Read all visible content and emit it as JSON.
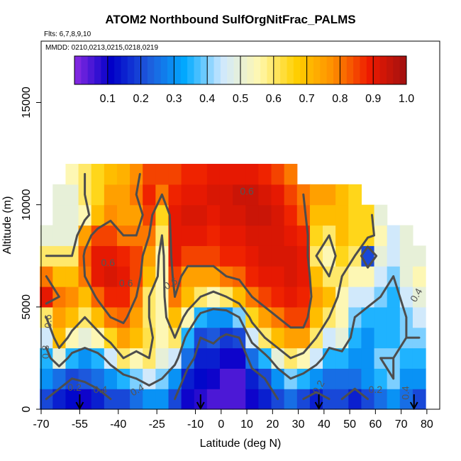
{
  "title": "ATOM2 Northbound SulfOrgNitFrac_PALMS",
  "flights_note": "Flts: 6,7,8,9,10",
  "mmdd_note": "MMDD: 0210,0213,0215,0218,0219",
  "chart_data": {
    "type": "heatmap",
    "title": "ATOM2 Northbound SulfOrgNitFrac_PALMS",
    "xlabel": "Latitude (deg N)",
    "ylabel": "Altitude (m)",
    "xlim": [
      -70,
      85
    ],
    "ylim": [
      0,
      18000
    ],
    "x_ticks": [
      -70,
      -55,
      -40,
      -25,
      -10,
      0,
      10,
      20,
      30,
      40,
      50,
      60,
      70,
      80
    ],
    "x_tick_labels": [
      "-70",
      "-55",
      "-40",
      "-25",
      "-10",
      "0",
      "10",
      "20",
      "30",
      "40",
      "50",
      "60",
      "70",
      "80"
    ],
    "y_ticks": [
      0,
      5000,
      10000,
      15000
    ],
    "y_tick_labels": [
      "0",
      "5000",
      "10000",
      "15000"
    ],
    "colorbar": {
      "range": [
        0,
        1.0
      ],
      "tick_values": [
        0.1,
        0.2,
        0.3,
        0.4,
        0.5,
        0.6,
        0.7,
        0.8,
        0.9,
        1.0
      ],
      "tick_labels": [
        "0.1",
        "0.2",
        "0.3",
        "0.4",
        "0.5",
        "0.6",
        "0.7",
        "0.8",
        "0.9",
        "1.0"
      ],
      "placement": "top-inside",
      "colors": [
        "#8a2be2",
        "#0000c8",
        "#1e5adc",
        "#00aaff",
        "#cfe8ff",
        "#fff8b0",
        "#ffd000",
        "#ff9000",
        "#ee1a00",
        "#a01010"
      ]
    },
    "latitudes": [
      -68,
      -63,
      -58,
      -53,
      -48,
      -43,
      -38,
      -33,
      -28,
      -23,
      -18,
      -13,
      -8,
      -3,
      2,
      7,
      12,
      17,
      22,
      27,
      32,
      37,
      42,
      47,
      52,
      57,
      62,
      67,
      72,
      77
    ],
    "altitudes": [
      500,
      1500,
      2500,
      3500,
      4500,
      5500,
      6500,
      7500,
      8500,
      9500,
      10500,
      11500
    ],
    "values": [
      [
        0.2,
        0.3,
        0.35,
        0.45,
        0.6,
        0.9,
        0.8,
        0.6,
        0.5,
        null,
        null,
        null
      ],
      [
        0.15,
        0.25,
        0.5,
        0.7,
        0.75,
        0.8,
        0.7,
        0.6,
        0.5,
        0.5,
        0.5,
        null
      ],
      [
        0.12,
        0.2,
        0.35,
        0.55,
        0.7,
        0.78,
        0.7,
        0.6,
        0.5,
        0.5,
        0.5,
        0.55
      ],
      [
        0.1,
        0.22,
        0.3,
        0.5,
        0.6,
        0.7,
        0.8,
        0.82,
        0.75,
        0.55,
        0.6,
        0.6
      ],
      [
        0.15,
        0.25,
        0.35,
        0.55,
        0.7,
        0.82,
        0.9,
        0.9,
        0.85,
        0.7,
        0.65,
        0.65
      ],
      [
        0.2,
        0.3,
        0.45,
        0.65,
        0.8,
        0.88,
        0.92,
        0.9,
        0.85,
        0.78,
        0.75,
        0.7
      ],
      [
        0.2,
        0.35,
        0.6,
        0.75,
        0.82,
        0.88,
        0.9,
        0.88,
        0.8,
        0.75,
        0.75,
        0.72
      ],
      [
        0.25,
        0.4,
        0.55,
        0.7,
        0.75,
        0.8,
        0.85,
        0.85,
        0.8,
        0.75,
        0.8,
        0.78
      ],
      [
        0.3,
        0.45,
        0.6,
        0.62,
        0.6,
        0.6,
        0.7,
        0.75,
        0.8,
        0.85,
        0.88,
        0.85
      ],
      [
        0.3,
        0.4,
        0.5,
        0.55,
        0.55,
        0.55,
        0.55,
        0.55,
        0.6,
        0.65,
        0.8,
        0.85
      ],
      [
        0.2,
        0.3,
        0.45,
        0.6,
        0.7,
        0.8,
        0.85,
        0.9,
        0.9,
        0.9,
        0.88,
        0.85
      ],
      [
        0.1,
        0.15,
        0.25,
        0.35,
        0.55,
        0.7,
        0.75,
        0.85,
        0.9,
        0.92,
        0.9,
        0.88
      ],
      [
        0.08,
        0.12,
        0.15,
        0.2,
        0.35,
        0.6,
        0.75,
        0.85,
        0.9,
        0.92,
        0.9,
        0.88
      ],
      [
        0.05,
        0.1,
        0.15,
        0.22,
        0.3,
        0.55,
        0.75,
        0.85,
        0.88,
        0.9,
        0.92,
        0.9
      ],
      [
        0.05,
        0.05,
        0.1,
        0.18,
        0.3,
        0.6,
        0.8,
        0.88,
        0.9,
        0.92,
        0.92,
        0.9
      ],
      [
        0.05,
        0.05,
        0.1,
        0.2,
        0.4,
        0.7,
        0.82,
        0.88,
        0.9,
        0.92,
        0.94,
        0.9
      ],
      [
        0.1,
        0.15,
        0.25,
        0.45,
        0.65,
        0.8,
        0.88,
        0.9,
        0.92,
        0.94,
        0.94,
        0.9
      ],
      [
        0.15,
        0.2,
        0.35,
        0.6,
        0.75,
        0.85,
        0.9,
        0.92,
        0.92,
        0.94,
        0.92,
        0.88
      ],
      [
        0.2,
        0.3,
        0.5,
        0.7,
        0.8,
        0.88,
        0.9,
        0.92,
        0.92,
        0.92,
        0.9,
        0.85
      ],
      [
        0.25,
        0.4,
        0.6,
        0.75,
        0.85,
        0.9,
        0.92,
        0.92,
        0.9,
        0.88,
        0.85,
        0.8
      ],
      [
        0.2,
        0.35,
        0.55,
        0.75,
        0.85,
        0.88,
        0.9,
        0.9,
        0.88,
        0.82,
        0.8,
        null
      ],
      [
        0.15,
        0.3,
        0.45,
        0.6,
        0.7,
        0.75,
        0.7,
        0.6,
        0.65,
        0.7,
        0.75,
        null
      ],
      [
        0.2,
        0.25,
        0.35,
        0.45,
        0.6,
        0.7,
        0.6,
        0.55,
        0.6,
        0.7,
        0.75,
        null
      ],
      [
        0.2,
        0.25,
        0.35,
        0.5,
        0.55,
        0.55,
        0.6,
        0.65,
        0.7,
        0.7,
        0.7,
        null
      ],
      [
        0.15,
        0.25,
        0.3,
        0.35,
        0.4,
        0.45,
        0.55,
        0.6,
        0.65,
        0.65,
        0.65,
        null
      ],
      [
        0.2,
        0.3,
        0.3,
        0.3,
        0.35,
        0.45,
        0.55,
        0.2,
        0.65,
        0.65,
        null,
        null
      ],
      [
        0.25,
        0.35,
        0.4,
        0.35,
        0.35,
        0.4,
        0.45,
        0.5,
        0.55,
        0.5,
        null,
        null
      ],
      [
        0.3,
        0.4,
        0.4,
        0.35,
        0.35,
        0.35,
        0.4,
        0.45,
        0.45,
        null,
        null,
        null
      ],
      [
        0.25,
        0.3,
        0.35,
        0.4,
        0.4,
        0.45,
        0.5,
        0.5,
        0.5,
        null,
        null,
        null
      ],
      [
        0.2,
        0.3,
        0.35,
        0.4,
        0.45,
        0.5,
        0.55,
        0.5,
        null,
        null,
        null,
        null
      ]
    ],
    "contour_levels": [
      0.2,
      0.4,
      0.6,
      0.8
    ],
    "contour_labels": [
      {
        "text": "0.8",
        "lat": -67,
        "alt": 2800,
        "rotate": -90
      },
      {
        "text": "0.6",
        "lat": -66,
        "alt": 4300,
        "rotate": -90
      },
      {
        "text": "0.2",
        "lat": -57,
        "alt": 900,
        "rotate": 0
      },
      {
        "text": "0.4",
        "lat": -47,
        "alt": 800,
        "rotate": 0
      },
      {
        "text": "0.6",
        "lat": -37,
        "alt": 6000,
        "rotate": 0
      },
      {
        "text": "0.6",
        "lat": -44,
        "alt": 7000,
        "rotate": 0
      },
      {
        "text": "0.6",
        "lat": -19,
        "alt": 6000,
        "rotate": -30
      },
      {
        "text": "0.4",
        "lat": -32,
        "alt": 800,
        "rotate": -30
      },
      {
        "text": "0.6",
        "lat": 10,
        "alt": 10500,
        "rotate": 0
      },
      {
        "text": "0.2",
        "lat": 39,
        "alt": 1000,
        "rotate": -60
      },
      {
        "text": "0.2",
        "lat": 60,
        "alt": 800,
        "rotate": 0
      },
      {
        "text": "0.4",
        "lat": 77,
        "alt": 5500,
        "rotate": -60
      },
      {
        "text": "0.4",
        "lat": 73,
        "alt": 800,
        "rotate": -90
      }
    ],
    "arrow_latitudes": [
      -55,
      -8,
      38,
      75
    ],
    "grid": false
  }
}
